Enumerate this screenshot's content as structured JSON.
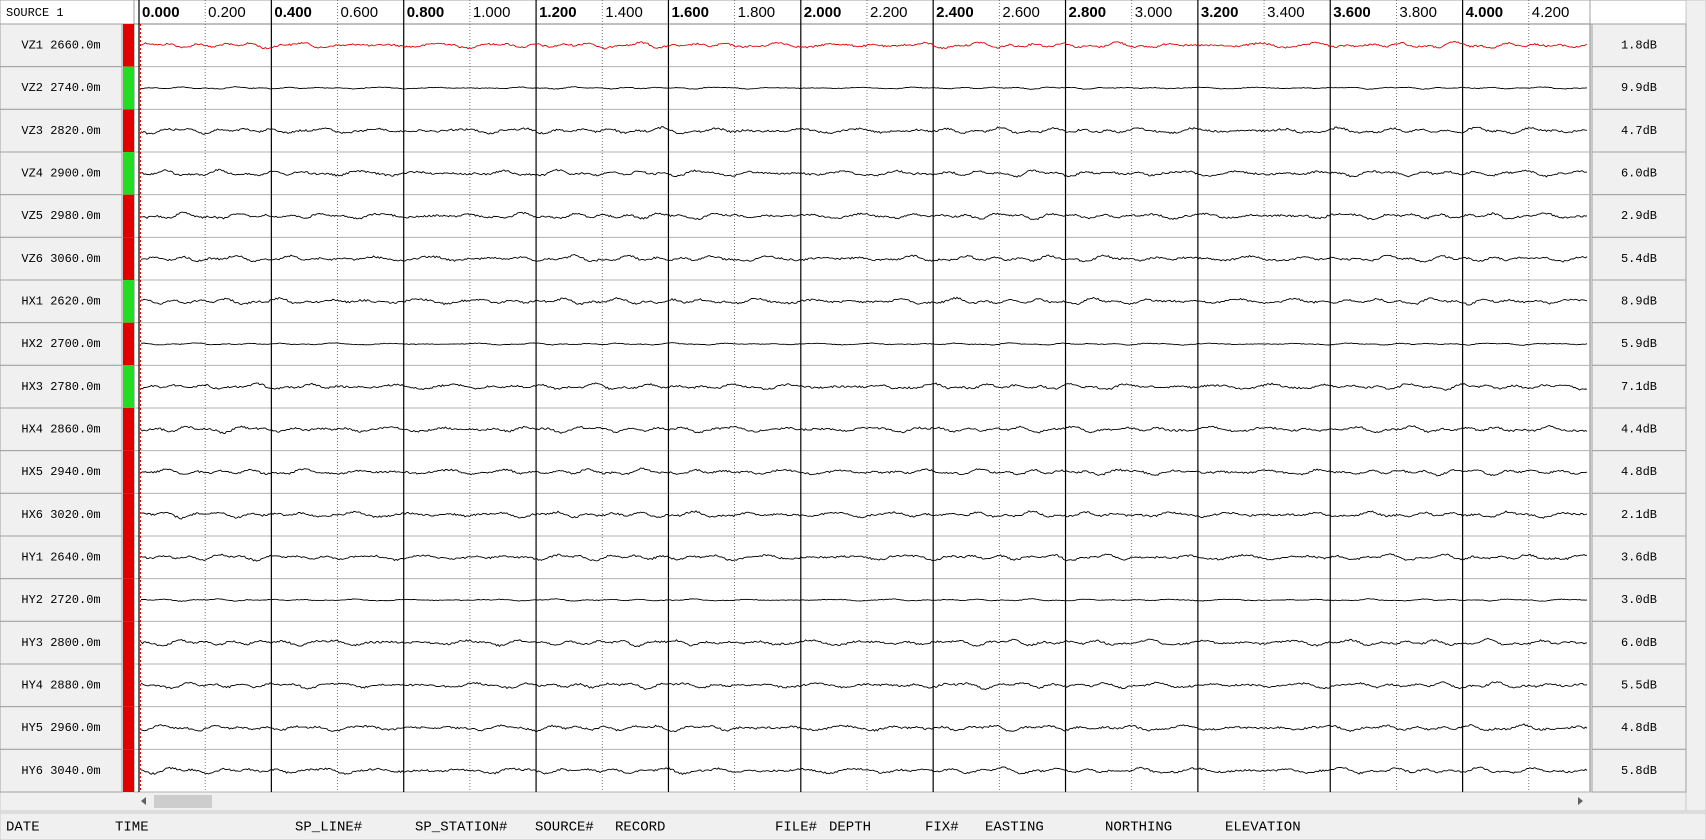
{
  "header": {
    "source_label": "SOURCE 1"
  },
  "time_axis": {
    "xlim": [
      0,
      4.385
    ],
    "ticks": [
      {
        "value": 0,
        "label": "0.000"
      },
      {
        "value": 0.2,
        "label": "0.200"
      },
      {
        "value": 0.4,
        "label": "0.400"
      },
      {
        "value": 0.6,
        "label": "0.600"
      },
      {
        "value": 0.8,
        "label": "0.800"
      },
      {
        "value": 1,
        "label": "1.000"
      },
      {
        "value": 1.2,
        "label": "1.200"
      },
      {
        "value": 1.4,
        "label": "1.400"
      },
      {
        "value": 1.6,
        "label": "1.600"
      },
      {
        "value": 1.8,
        "label": "1.800"
      },
      {
        "value": 2,
        "label": "2.000"
      },
      {
        "value": 2.2,
        "label": "2.200"
      },
      {
        "value": 2.4,
        "label": "2.400"
      },
      {
        "value": 2.6,
        "label": "2.600"
      },
      {
        "value": 2.8,
        "label": "2.800"
      },
      {
        "value": 3,
        "label": "3.000"
      },
      {
        "value": 3.2,
        "label": "3.200"
      },
      {
        "value": 3.4,
        "label": "3.400"
      },
      {
        "value": 3.6,
        "label": "3.600"
      },
      {
        "value": 3.8,
        "label": "3.800"
      },
      {
        "value": 4,
        "label": "4.000"
      },
      {
        "value": 4.2,
        "label": "4.200"
      }
    ]
  },
  "channels": [
    {
      "label": "VZ1 2660.0m",
      "status_color": "#e00000",
      "trace_color": "#e00000",
      "gain": "1.8dB"
    },
    {
      "label": "VZ2 2740.0m",
      "status_color": "#22dd22",
      "trace_color": "#000000",
      "gain": "9.9dB"
    },
    {
      "label": "VZ3 2820.0m",
      "status_color": "#e00000",
      "trace_color": "#000000",
      "gain": "4.7dB"
    },
    {
      "label": "VZ4 2900.0m",
      "status_color": "#22dd22",
      "trace_color": "#000000",
      "gain": "6.0dB"
    },
    {
      "label": "VZ5 2980.0m",
      "status_color": "#e00000",
      "trace_color": "#000000",
      "gain": "2.9dB"
    },
    {
      "label": "VZ6 3060.0m",
      "status_color": "#e00000",
      "trace_color": "#000000",
      "gain": "5.4dB"
    },
    {
      "label": "HX1 2620.0m",
      "status_color": "#22dd22",
      "trace_color": "#000000",
      "gain": "8.9dB"
    },
    {
      "label": "HX2 2700.0m",
      "status_color": "#e00000",
      "trace_color": "#000000",
      "gain": "5.9dB"
    },
    {
      "label": "HX3 2780.0m",
      "status_color": "#22dd22",
      "trace_color": "#000000",
      "gain": "7.1dB"
    },
    {
      "label": "HX4 2860.0m",
      "status_color": "#e00000",
      "trace_color": "#000000",
      "gain": "4.4dB"
    },
    {
      "label": "HX5 2940.0m",
      "status_color": "#e00000",
      "trace_color": "#000000",
      "gain": "4.8dB"
    },
    {
      "label": "HX6 3020.0m",
      "status_color": "#e00000",
      "trace_color": "#000000",
      "gain": "2.1dB"
    },
    {
      "label": "HY1 2640.0m",
      "status_color": "#e00000",
      "trace_color": "#000000",
      "gain": "3.6dB"
    },
    {
      "label": "HY2 2720.0m",
      "status_color": "#e00000",
      "trace_color": "#000000",
      "gain": "3.0dB"
    },
    {
      "label": "HY3 2800.0m",
      "status_color": "#e00000",
      "trace_color": "#000000",
      "gain": "6.0dB"
    },
    {
      "label": "HY4 2880.0m",
      "status_color": "#e00000",
      "trace_color": "#000000",
      "gain": "5.5dB"
    },
    {
      "label": "HY5 2960.0m",
      "status_color": "#e00000",
      "trace_color": "#000000",
      "gain": "4.8dB"
    },
    {
      "label": "HY6 3040.0m",
      "status_color": "#e00000",
      "trace_color": "#000000",
      "gain": "5.8dB"
    }
  ],
  "footer": {
    "fields": [
      "DATE",
      "TIME",
      "SP_LINE#",
      "SP_STATION#",
      "SOURCE#",
      "RECORD",
      "FILE#",
      "DEPTH",
      "FIX#",
      "EASTING",
      "NORTHING",
      "ELEVATION"
    ]
  }
}
